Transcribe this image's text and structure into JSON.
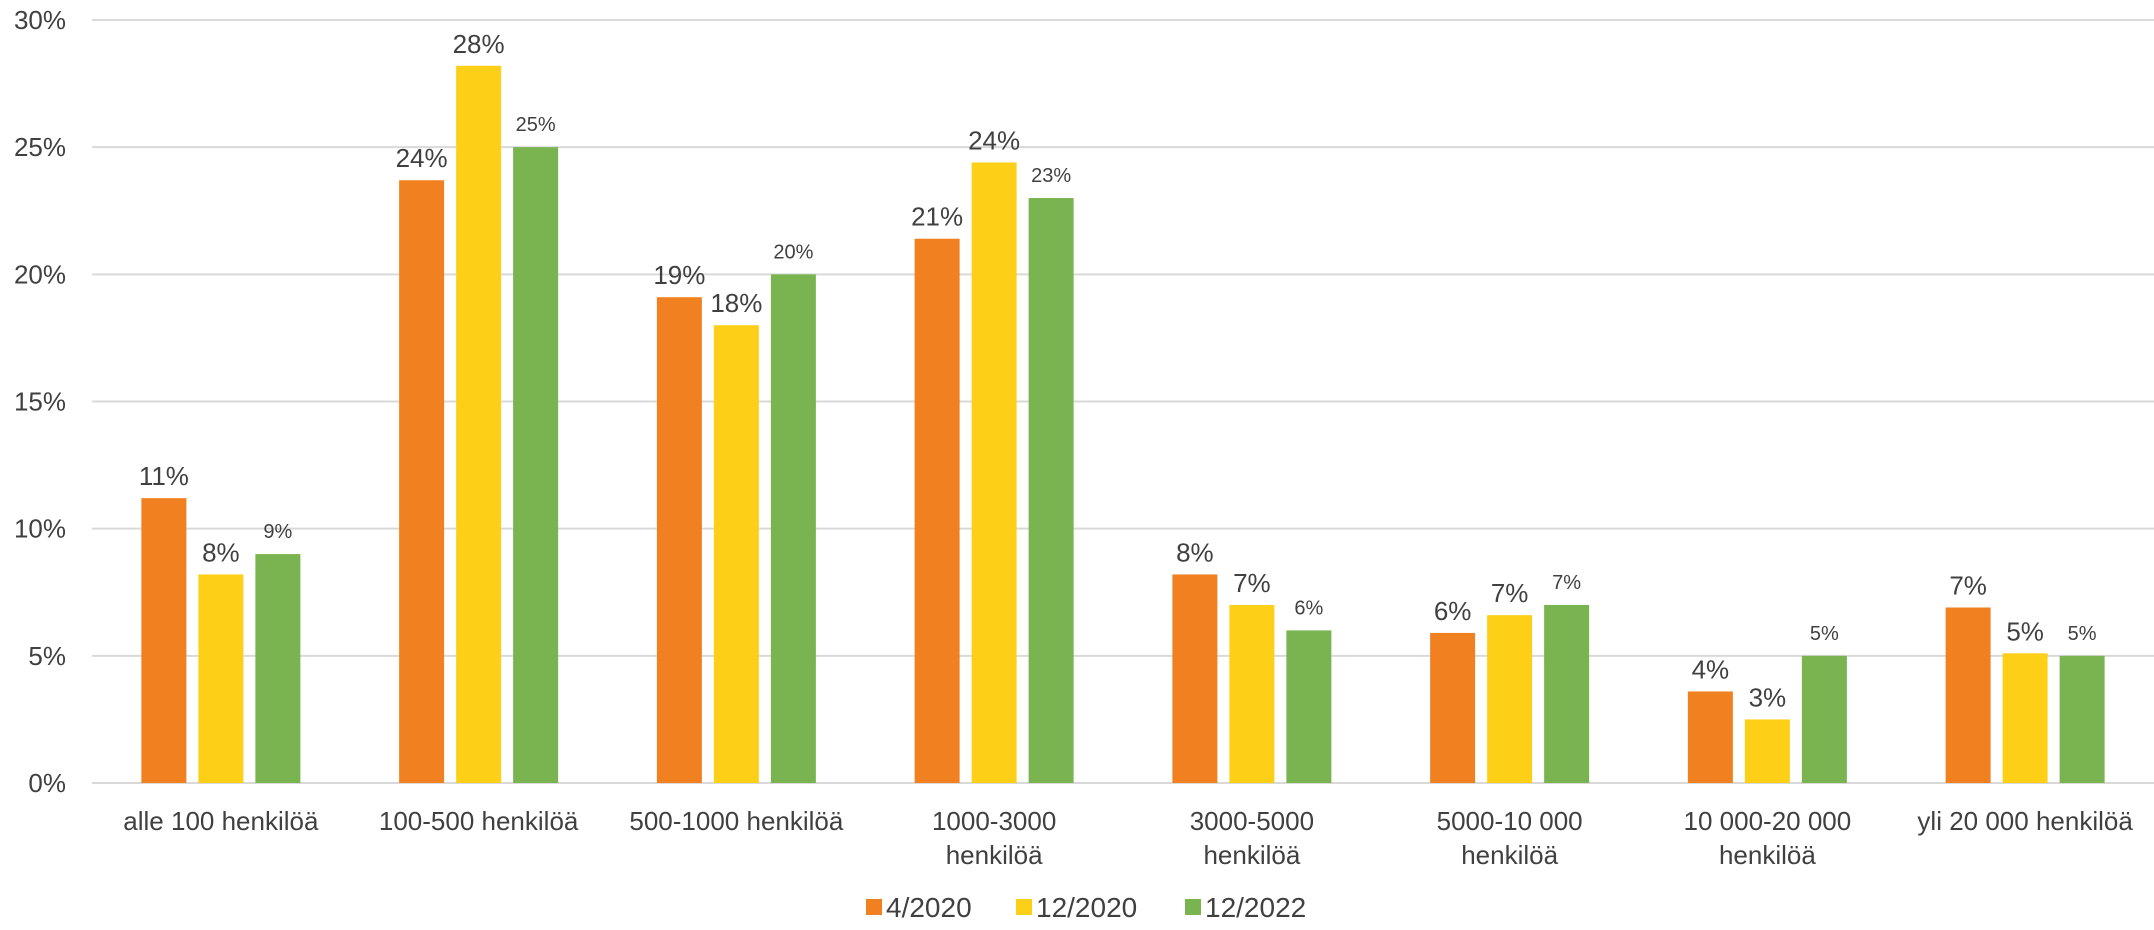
{
  "chart_data": {
    "type": "bar",
    "categories": [
      [
        "alle 100 henkilöä"
      ],
      [
        "100-500 henkilöä"
      ],
      [
        "500-1000 henkilöä"
      ],
      [
        "1000-3000",
        "henkilöä"
      ],
      [
        "3000-5000",
        "henkilöä"
      ],
      [
        "5000-10 000",
        "henkilöä"
      ],
      [
        "10 000-20 000",
        "henkilöä"
      ],
      [
        "yli 20 000 henkilöä"
      ]
    ],
    "series": [
      {
        "name": "4/2020",
        "color": "#F08020",
        "values": [
          11.2,
          23.7,
          19.1,
          21.4,
          8.2,
          5.9,
          3.6,
          6.9
        ],
        "labels": [
          "11%",
          "24%",
          "19%",
          "21%",
          "8%",
          "6%",
          "4%",
          "7%"
        ]
      },
      {
        "name": "12/2020",
        "color": "#FDD017",
        "values": [
          8.2,
          28.2,
          18.0,
          24.4,
          7.0,
          6.6,
          2.5,
          5.1
        ],
        "labels": [
          "8%",
          "28%",
          "18%",
          "24%",
          "7%",
          "7%",
          "3%",
          "5%"
        ]
      },
      {
        "name": "12/2022",
        "color": "#7AB450",
        "values": [
          9.0,
          25.0,
          20.0,
          23.0,
          6.0,
          7.0,
          5.0,
          5.0
        ],
        "labels": [
          "9%",
          "25%",
          "20%",
          "23%",
          "6%",
          "7%",
          "5%",
          "5%"
        ]
      }
    ],
    "y_ticks": [
      "0%",
      "5%",
      "10%",
      "15%",
      "20%",
      "25%",
      "30%"
    ],
    "ylim": [
      0,
      30
    ],
    "title": "",
    "xlabel": "",
    "ylabel": "",
    "grid": true,
    "legend_position": "bottom-center",
    "gridline_color": "#D9D9D9"
  }
}
